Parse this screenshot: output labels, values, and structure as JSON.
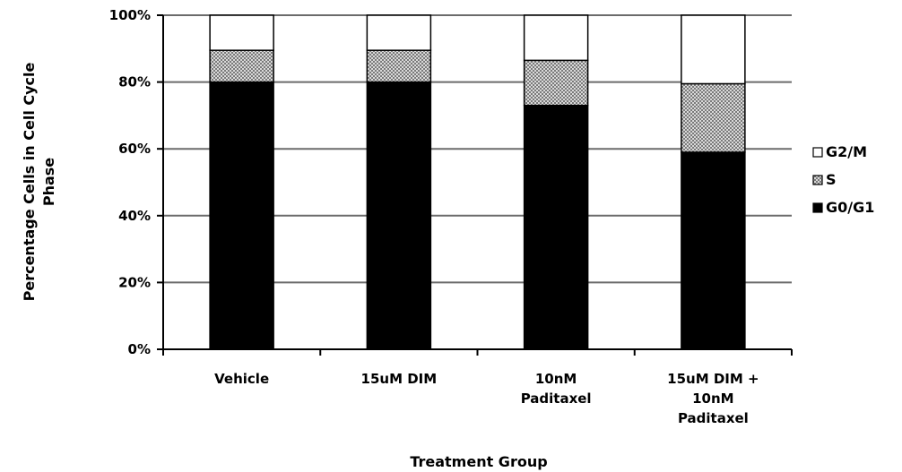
{
  "chart_data": {
    "type": "bar",
    "stacked": true,
    "categories": [
      [
        "Vehicle"
      ],
      [
        "15uM DIM"
      ],
      [
        "10nM",
        "Paditaxel"
      ],
      [
        "15uM DIM +",
        "10nM",
        "Paditaxel"
      ]
    ],
    "series": [
      {
        "name": "G0/G1",
        "values": [
          80,
          80,
          73,
          59
        ],
        "fill": "#000000"
      },
      {
        "name": "S",
        "values": [
          9.5,
          9.5,
          13.5,
          20.5
        ],
        "fill": "pattern-dots"
      },
      {
        "name": "G2/M",
        "values": [
          10.5,
          10.5,
          13.5,
          20.5
        ],
        "fill": "#ffffff"
      }
    ],
    "legend_order": [
      "G2/M",
      "S",
      "G0/G1"
    ],
    "legend_position": "right",
    "xlabel": "Treatment Group",
    "ylabel_lines": [
      "Percentage Cells in Cell Cycle",
      "Phase"
    ],
    "ylim": [
      0,
      100
    ],
    "yticks": [
      0,
      20,
      40,
      60,
      80,
      100
    ],
    "ytick_suffix": "%",
    "grid": true
  }
}
